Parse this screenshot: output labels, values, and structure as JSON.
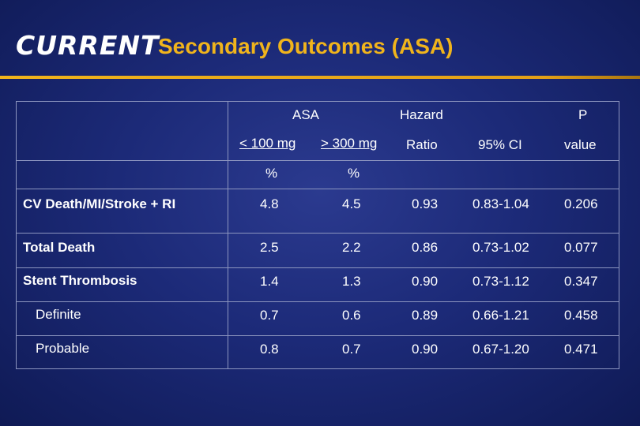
{
  "header": {
    "logo_text": "CURRENT",
    "title": "Secondary Outcomes (ASA)"
  },
  "table": {
    "headers": {
      "asa": "ASA",
      "low_dose": "< 100 mg",
      "high_dose": "> 300 mg",
      "pct1": "%",
      "pct2": "%",
      "hazard": "Hazard",
      "ratio": "Ratio",
      "ci": "95% CI",
      "p": "P",
      "value": "value"
    },
    "rows": [
      {
        "label": "CV Death/MI/Stroke + RI",
        "low": "4.8",
        "high": "4.5",
        "hr": "0.93",
        "ci": "0.83-1.04",
        "p": "0.206"
      },
      {
        "label": "Total Death",
        "low": "2.5",
        "high": "2.2",
        "hr": "0.86",
        "ci": "0.73-1.02",
        "p": "0.077"
      },
      {
        "label": "Stent Thrombosis",
        "low": "1.4",
        "high": "1.3",
        "hr": "0.90",
        "ci": "0.73-1.12",
        "p": "0.347"
      },
      {
        "label": "Definite",
        "low": "0.7",
        "high": "0.6",
        "hr": "0.89",
        "ci": "0.66-1.21",
        "p": "0.458"
      },
      {
        "label": "Probable",
        "low": "0.8",
        "high": "0.7",
        "hr": "0.90",
        "ci": "0.67-1.20",
        "p": "0.471"
      }
    ]
  }
}
